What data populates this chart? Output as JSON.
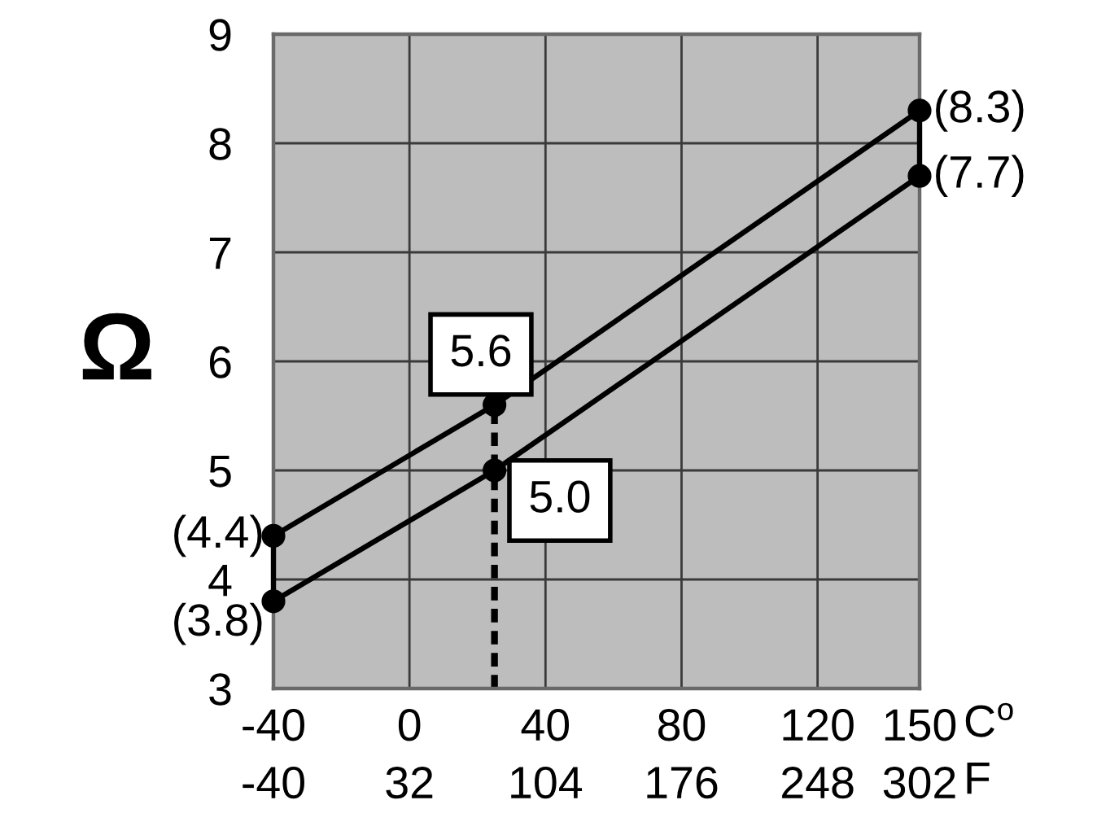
{
  "chart_data": {
    "type": "line",
    "xlabel": "C$^{o}$",
    "x2label": "F",
    "ylabel": "Ω",
    "xlim": [
      -40,
      150
    ],
    "xticks": [
      -40,
      0,
      40,
      80,
      120,
      150
    ],
    "x2lim": [
      -40,
      302
    ],
    "x2ticks": [
      -40,
      32,
      104,
      176,
      248,
      302
    ],
    "ylim": [
      3,
      9
    ],
    "yticks": [
      3,
      4,
      5,
      6,
      7,
      8,
      9
    ],
    "grid": true,
    "marker": "circle",
    "line_style": "solid",
    "series": [
      {
        "color": "#000000",
        "x": [
          -40,
          25,
          150
        ],
        "values": [
          4.4,
          5.6,
          8.3
        ],
        "value_labels": [
          "(4.4)",
          null,
          "(8.3)"
        ]
      },
      {
        "color": "#000000",
        "x": [
          -40,
          25,
          150
        ],
        "values": [
          3.8,
          5.0,
          7.7
        ],
        "value_labels": [
          "(3.8)",
          null,
          "(7.7)"
        ]
      },
      {
        "color": "#000000",
        "x": [
          -40,
          -40
        ],
        "values": [
          3.8,
          4.4
        ],
        "marker": "none"
      },
      {
        "color": "#000000",
        "x": [
          150,
          150
        ],
        "values": [
          7.7,
          8.3
        ],
        "marker": "none"
      },
      {
        "color": "#000000",
        "x": [
          25,
          25
        ],
        "values": [
          3,
          5.6
        ],
        "marker": "none",
        "line_style": "dashed"
      }
    ],
    "annotations": [
      {
        "text": "5.6",
        "x": 25,
        "y": 5.6
      },
      {
        "text": "5.0",
        "x": 25,
        "y": 5.0
      }
    ]
  }
}
